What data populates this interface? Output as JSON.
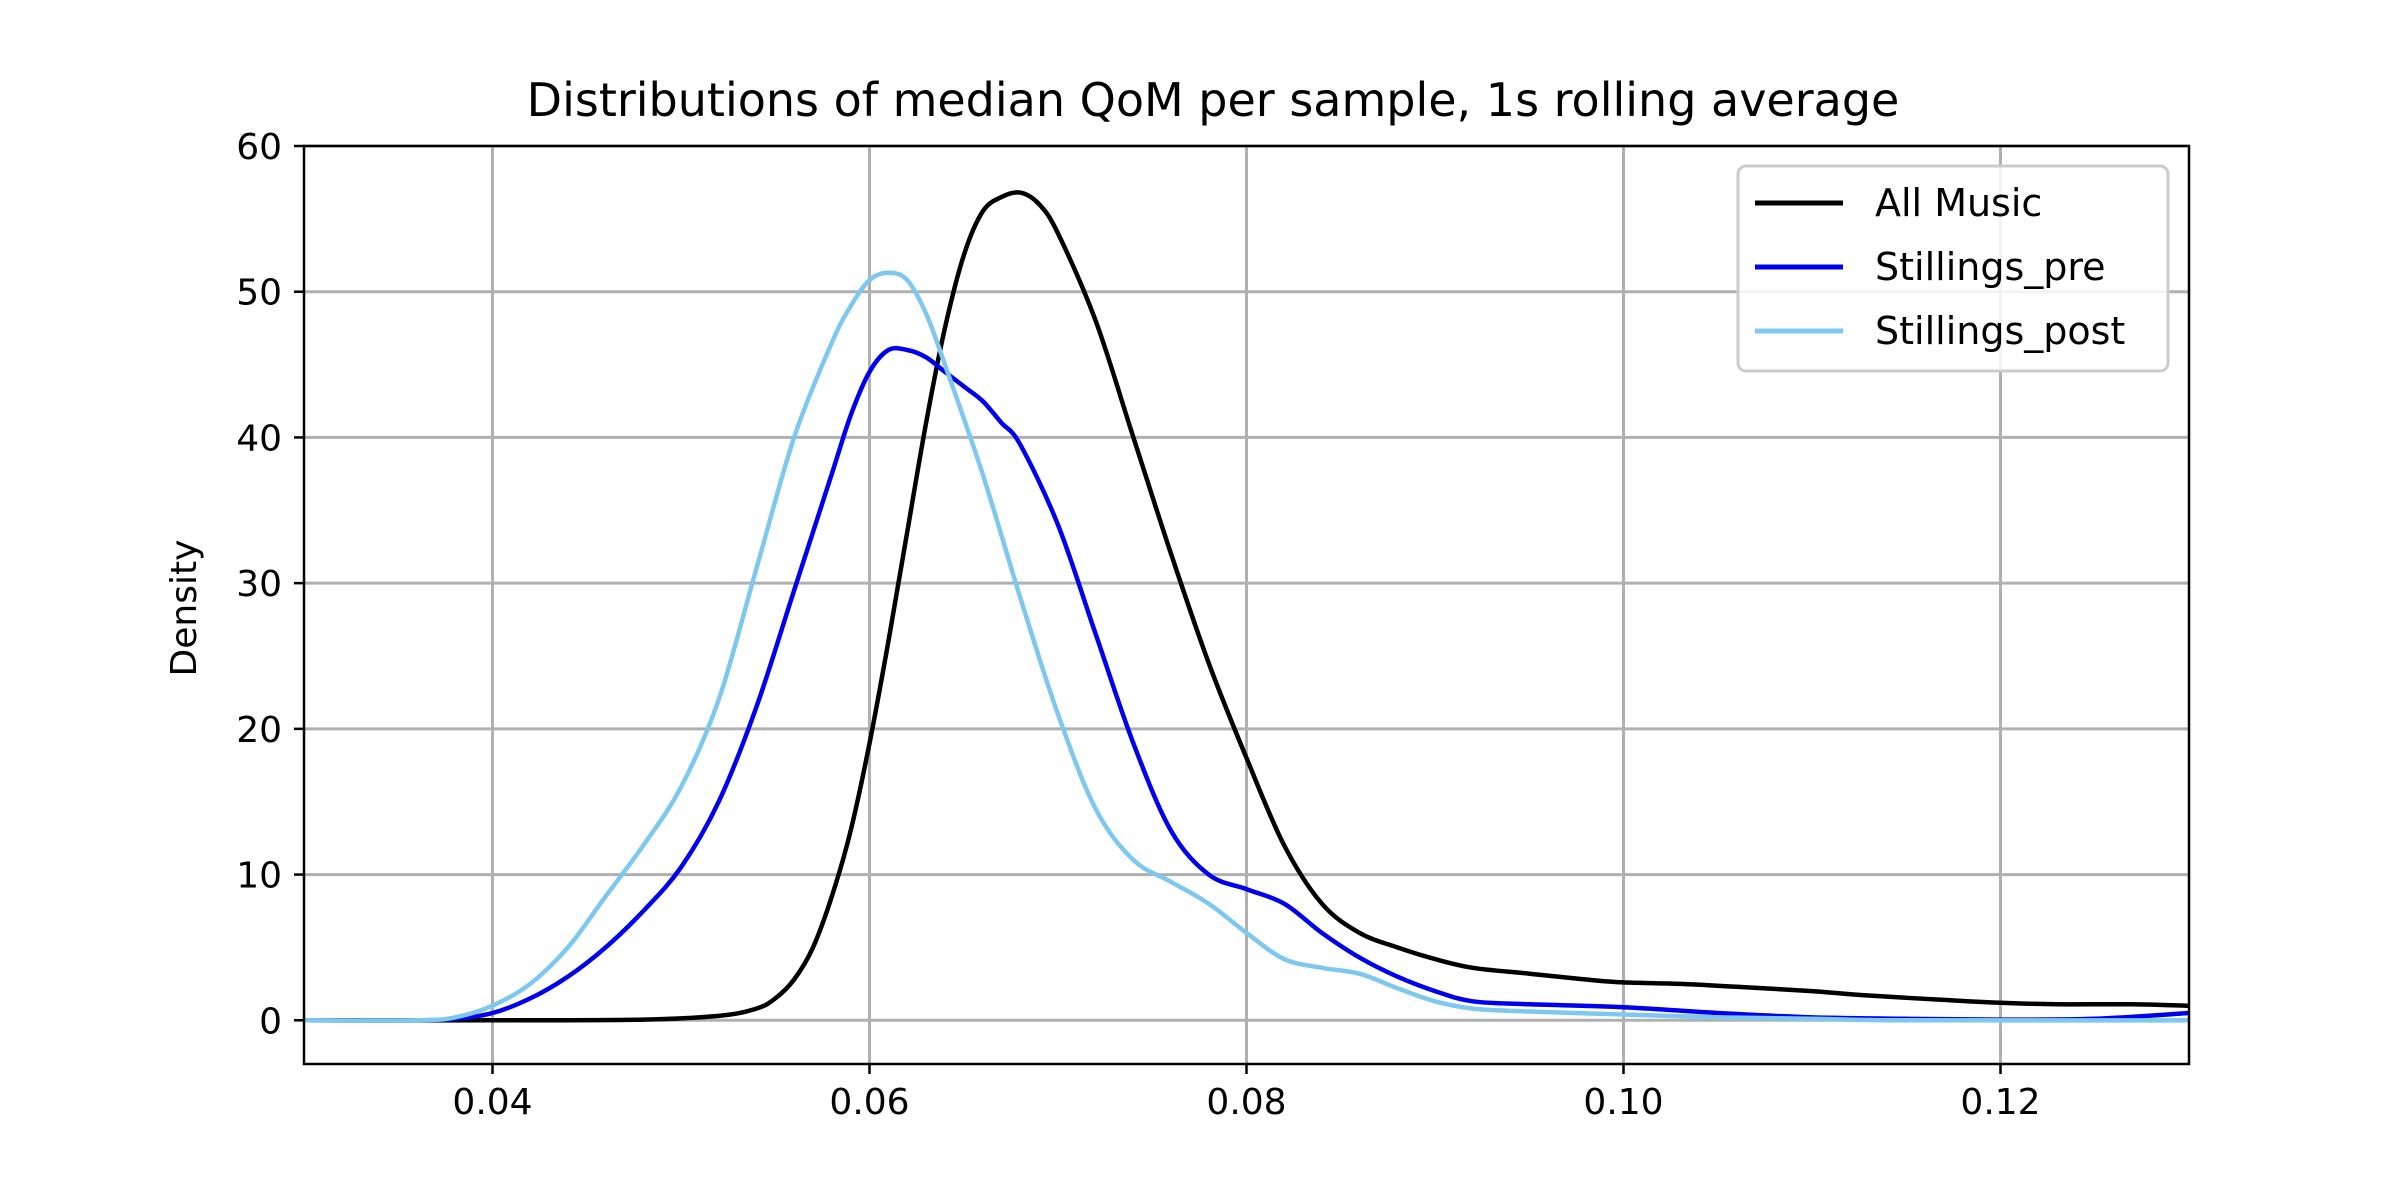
{
  "chart_data": {
    "type": "line",
    "title": "Distributions of median QoM per sample, 1s rolling average",
    "xlabel": "",
    "ylabel": "Density",
    "xlim": [
      0.03,
      0.13
    ],
    "ylim": [
      -3,
      60
    ],
    "xticks": [
      0.04,
      0.06,
      0.08,
      0.1,
      0.12
    ],
    "xtick_labels": [
      "0.04",
      "0.06",
      "0.08",
      "0.10",
      "0.12"
    ],
    "yticks": [
      0,
      10,
      20,
      30,
      40,
      50,
      60
    ],
    "ytick_labels": [
      "0",
      "10",
      "20",
      "30",
      "40",
      "50",
      "60"
    ],
    "grid": true,
    "legend_position": "top-right",
    "series": [
      {
        "name": "All Music",
        "color": "#000000",
        "points": [
          [
            0.03,
            0
          ],
          [
            0.04,
            0
          ],
          [
            0.048,
            0.05
          ],
          [
            0.052,
            0.3
          ],
          [
            0.054,
            0.8
          ],
          [
            0.055,
            1.5
          ],
          [
            0.056,
            2.8
          ],
          [
            0.057,
            5.0
          ],
          [
            0.058,
            8.5
          ],
          [
            0.059,
            13
          ],
          [
            0.06,
            19
          ],
          [
            0.061,
            26
          ],
          [
            0.062,
            33.5
          ],
          [
            0.063,
            41
          ],
          [
            0.064,
            47.5
          ],
          [
            0.065,
            52.5
          ],
          [
            0.066,
            55.5
          ],
          [
            0.067,
            56.5
          ],
          [
            0.068,
            56.8
          ],
          [
            0.069,
            56
          ],
          [
            0.07,
            54
          ],
          [
            0.072,
            48
          ],
          [
            0.074,
            40
          ],
          [
            0.076,
            32
          ],
          [
            0.078,
            24.5
          ],
          [
            0.08,
            18
          ],
          [
            0.082,
            12
          ],
          [
            0.084,
            8
          ],
          [
            0.086,
            6
          ],
          [
            0.088,
            5
          ],
          [
            0.09,
            4.2
          ],
          [
            0.092,
            3.6
          ],
          [
            0.095,
            3.2
          ],
          [
            0.098,
            2.8
          ],
          [
            0.1,
            2.6
          ],
          [
            0.103,
            2.5
          ],
          [
            0.106,
            2.3
          ],
          [
            0.11,
            2.0
          ],
          [
            0.113,
            1.7
          ],
          [
            0.117,
            1.4
          ],
          [
            0.12,
            1.2
          ],
          [
            0.123,
            1.1
          ],
          [
            0.127,
            1.1
          ],
          [
            0.13,
            1.0
          ]
        ]
      },
      {
        "name": "Stillings_pre",
        "color": "#0000ee",
        "points": [
          [
            0.03,
            0
          ],
          [
            0.036,
            0
          ],
          [
            0.038,
            0.1
          ],
          [
            0.04,
            0.5
          ],
          [
            0.042,
            1.5
          ],
          [
            0.044,
            3
          ],
          [
            0.046,
            5
          ],
          [
            0.048,
            7.5
          ],
          [
            0.05,
            10.5
          ],
          [
            0.052,
            15
          ],
          [
            0.054,
            21.5
          ],
          [
            0.056,
            29.5
          ],
          [
            0.058,
            37.5
          ],
          [
            0.059,
            41.5
          ],
          [
            0.06,
            44.5
          ],
          [
            0.061,
            46
          ],
          [
            0.062,
            46
          ],
          [
            0.063,
            45.5
          ],
          [
            0.064,
            44.5
          ],
          [
            0.065,
            43.5
          ],
          [
            0.066,
            42.5
          ],
          [
            0.067,
            41
          ],
          [
            0.068,
            39.5
          ],
          [
            0.07,
            34
          ],
          [
            0.072,
            26.5
          ],
          [
            0.074,
            19
          ],
          [
            0.076,
            13
          ],
          [
            0.078,
            10
          ],
          [
            0.08,
            9
          ],
          [
            0.082,
            8
          ],
          [
            0.084,
            6
          ],
          [
            0.086,
            4.3
          ],
          [
            0.088,
            3
          ],
          [
            0.09,
            2
          ],
          [
            0.092,
            1.3
          ],
          [
            0.095,
            1.1
          ],
          [
            0.1,
            0.9
          ],
          [
            0.105,
            0.5
          ],
          [
            0.11,
            0.2
          ],
          [
            0.115,
            0.1
          ],
          [
            0.12,
            0.05
          ],
          [
            0.125,
            0.1
          ],
          [
            0.13,
            0.5
          ]
        ]
      },
      {
        "name": "Stillings_post",
        "color": "#7ec8f0",
        "points": [
          [
            0.03,
            0
          ],
          [
            0.036,
            0
          ],
          [
            0.038,
            0.2
          ],
          [
            0.04,
            1
          ],
          [
            0.042,
            2.5
          ],
          [
            0.044,
            5
          ],
          [
            0.046,
            8.5
          ],
          [
            0.048,
            12
          ],
          [
            0.05,
            16
          ],
          [
            0.052,
            22
          ],
          [
            0.054,
            31
          ],
          [
            0.056,
            40
          ],
          [
            0.058,
            46.5
          ],
          [
            0.059,
            49
          ],
          [
            0.06,
            50.8
          ],
          [
            0.061,
            51.3
          ],
          [
            0.062,
            50.8
          ],
          [
            0.063,
            48.5
          ],
          [
            0.064,
            45
          ],
          [
            0.066,
            37.5
          ],
          [
            0.068,
            29
          ],
          [
            0.07,
            21
          ],
          [
            0.072,
            14.5
          ],
          [
            0.074,
            11
          ],
          [
            0.076,
            9.5
          ],
          [
            0.078,
            8
          ],
          [
            0.08,
            6
          ],
          [
            0.082,
            4.2
          ],
          [
            0.084,
            3.6
          ],
          [
            0.086,
            3.2
          ],
          [
            0.088,
            2.2
          ],
          [
            0.09,
            1.3
          ],
          [
            0.092,
            0.8
          ],
          [
            0.095,
            0.6
          ],
          [
            0.1,
            0.4
          ],
          [
            0.105,
            0.2
          ],
          [
            0.11,
            0.1
          ],
          [
            0.115,
            0
          ],
          [
            0.13,
            0
          ]
        ]
      }
    ]
  }
}
